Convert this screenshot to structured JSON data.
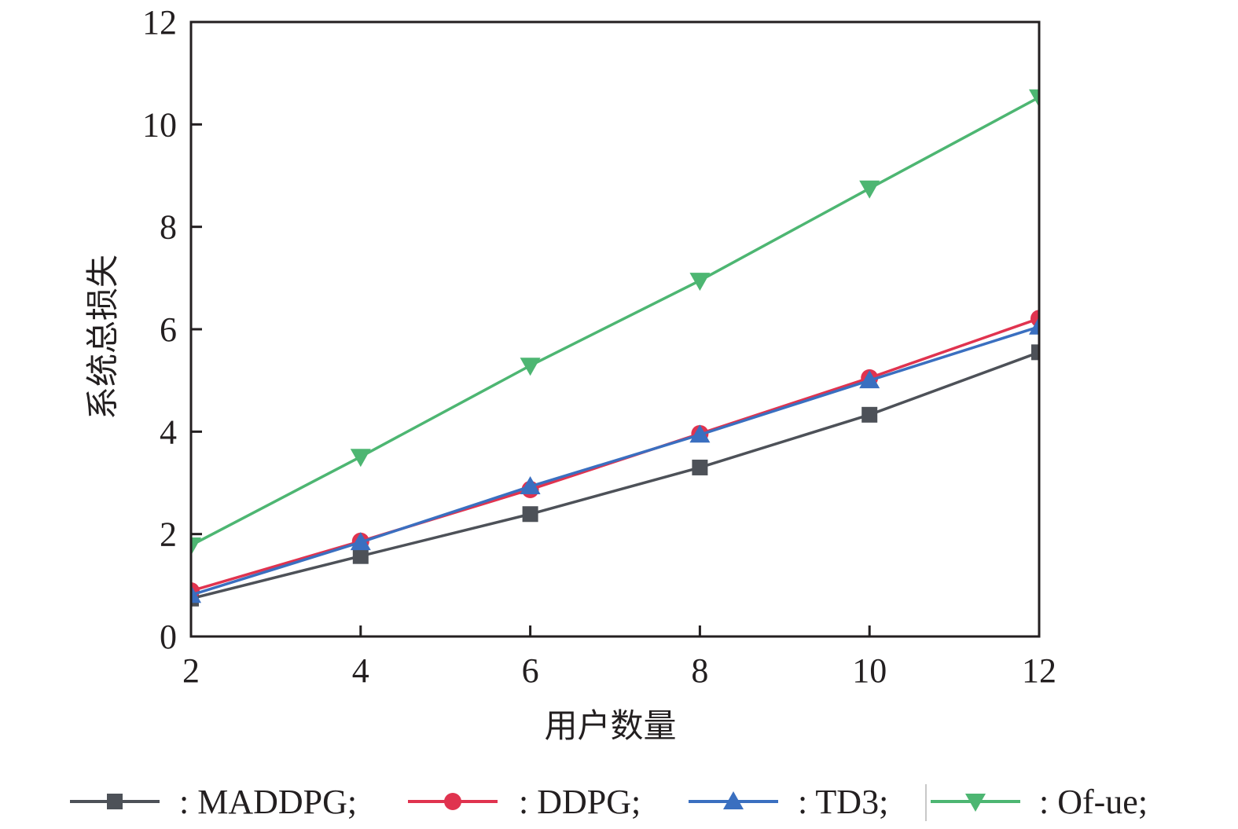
{
  "chart_data": {
    "type": "line",
    "title": "",
    "xlabel": "用户数量",
    "ylabel": "系统总损失",
    "x": [
      2,
      4,
      6,
      8,
      10,
      12
    ],
    "xlim": [
      2,
      12
    ],
    "ylim": [
      0,
      12
    ],
    "xticks": [
      2,
      4,
      6,
      8,
      10,
      12
    ],
    "yticks": [
      0,
      2,
      4,
      6,
      8,
      10,
      12
    ],
    "xtick_labels": [
      "2",
      "4",
      "6",
      "8",
      "10",
      "12"
    ],
    "ytick_labels": [
      "0",
      "2",
      "4",
      "6",
      "8",
      "10",
      "12"
    ],
    "grid": false,
    "legend_position": "bottom",
    "series": [
      {
        "name": "MADDPG",
        "legend_label": ": MADDPG;",
        "color": "#4d5158",
        "marker": "square",
        "values": [
          0.74,
          1.57,
          2.39,
          3.3,
          4.33,
          5.55
        ]
      },
      {
        "name": "DDPG",
        "legend_label": ": DDPG;",
        "color": "#e0334f",
        "marker": "circle",
        "values": [
          0.89,
          1.86,
          2.87,
          3.96,
          5.05,
          6.21
        ]
      },
      {
        "name": "TD3",
        "legend_label": ": TD3;",
        "color": "#3a6fc0",
        "marker": "triangle-up",
        "values": [
          0.81,
          1.84,
          2.93,
          3.94,
          5.0,
          6.05
        ]
      },
      {
        "name": "Of-ue",
        "legend_label": ": Of-ue;",
        "color": "#4db672",
        "marker": "triangle-down",
        "values": [
          1.78,
          3.51,
          5.29,
          6.95,
          8.75,
          10.53
        ]
      }
    ]
  }
}
